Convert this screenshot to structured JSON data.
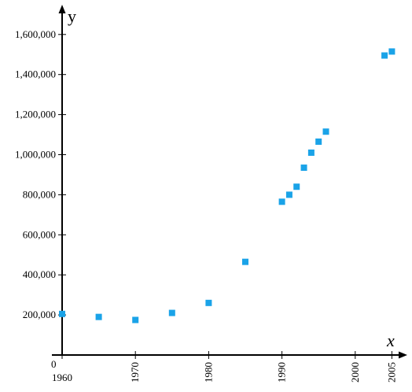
{
  "chart_data": {
    "type": "scatter",
    "title": "",
    "xlabel": "x",
    "ylabel": "y",
    "origin_label": "0",
    "xlim": [
      1960,
      2006
    ],
    "ylim": [
      0,
      1700000
    ],
    "x_ticks": [
      {
        "value": 1960,
        "label": "1960"
      },
      {
        "value": 1970,
        "label": "1970"
      },
      {
        "value": 1980,
        "label": "1980"
      },
      {
        "value": 1990,
        "label": "1990"
      },
      {
        "value": 2000,
        "label": "2000"
      },
      {
        "value": 2005,
        "label": "2005"
      }
    ],
    "y_ticks": [
      {
        "value": 200000,
        "label": "200,000"
      },
      {
        "value": 400000,
        "label": "400,000"
      },
      {
        "value": 600000,
        "label": "600,000"
      },
      {
        "value": 800000,
        "label": "800,000"
      },
      {
        "value": 1000000,
        "label": "1,000,000"
      },
      {
        "value": 1200000,
        "label": "1,200,000"
      },
      {
        "value": 1400000,
        "label": "1,400,000"
      },
      {
        "value": 1600000,
        "label": "1,600,000"
      }
    ],
    "grid": false,
    "marker_color": "#1aa3e8",
    "series": [
      {
        "x": [
          1960,
          1965,
          1970,
          1975,
          1980,
          1985,
          1990,
          1991,
          1992,
          1993,
          1994,
          1995,
          1996,
          2004,
          2005
        ],
        "y": [
          205000,
          190000,
          175000,
          210000,
          260000,
          465000,
          765000,
          800000,
          840000,
          935000,
          1010000,
          1065000,
          1115000,
          1495000,
          1515000
        ]
      }
    ]
  }
}
